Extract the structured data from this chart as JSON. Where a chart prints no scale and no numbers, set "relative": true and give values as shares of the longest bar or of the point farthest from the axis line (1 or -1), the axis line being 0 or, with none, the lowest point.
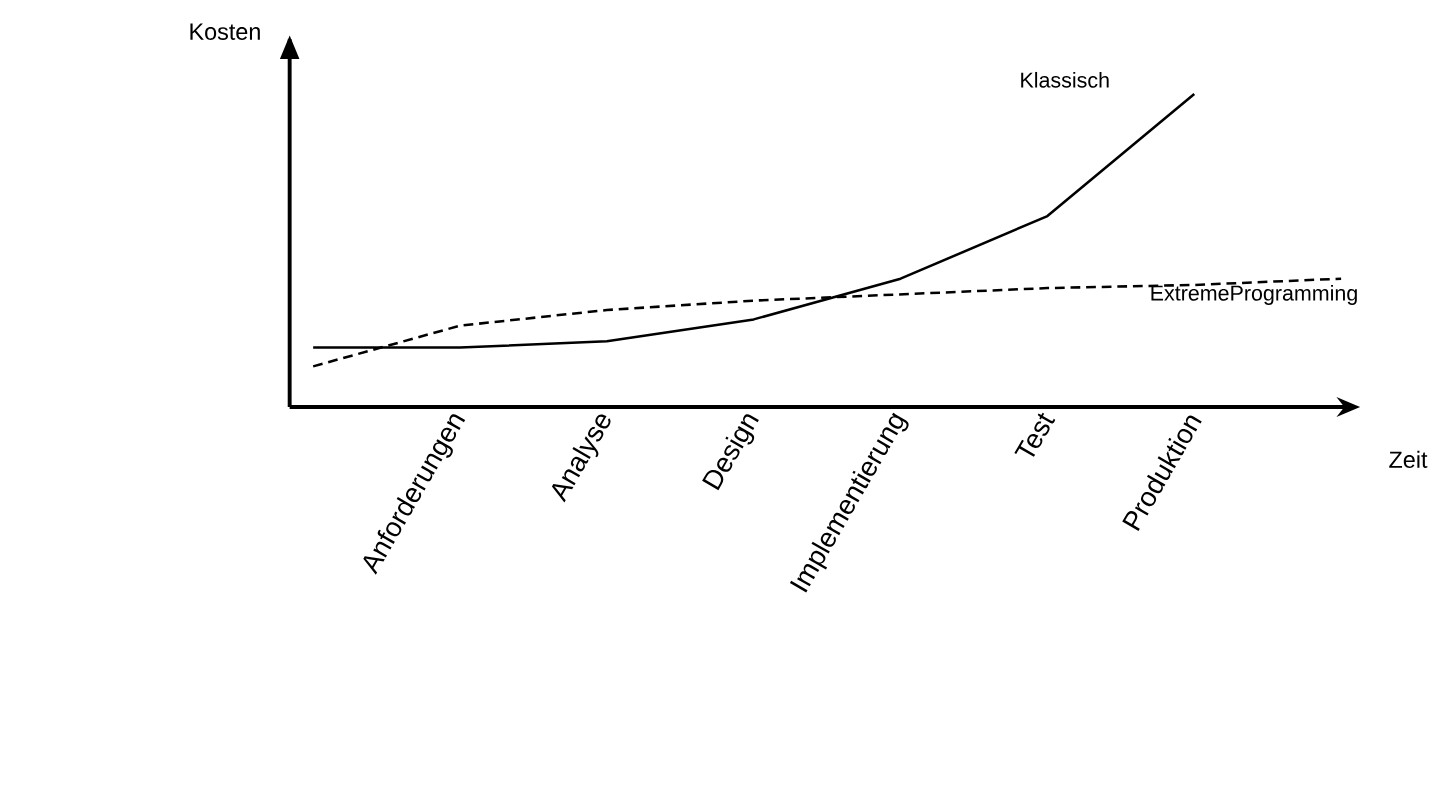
{
  "chart_data": {
    "type": "line",
    "relative": true,
    "xlabel": "Zeit",
    "ylabel": "Kosten",
    "categories": [
      null,
      "Anforderungen",
      "Analyse",
      "Design",
      "Implementierung",
      "Test",
      "Produktion",
      null
    ],
    "series": [
      {
        "name": "Klassisch",
        "color": "#000000",
        "line_style": "solid",
        "values": [
          0.19,
          0.19,
          0.21,
          0.28,
          0.41,
          0.61,
          1,
          null
        ]
      },
      {
        "name": "ExtremeProgramming",
        "color": "#000000",
        "line_style": "dashed",
        "values": [
          0.13,
          0.26,
          0.31,
          0.34,
          0.36,
          0.38,
          0.39,
          0.41
        ]
      }
    ],
    "legend": false,
    "grid": false
  }
}
